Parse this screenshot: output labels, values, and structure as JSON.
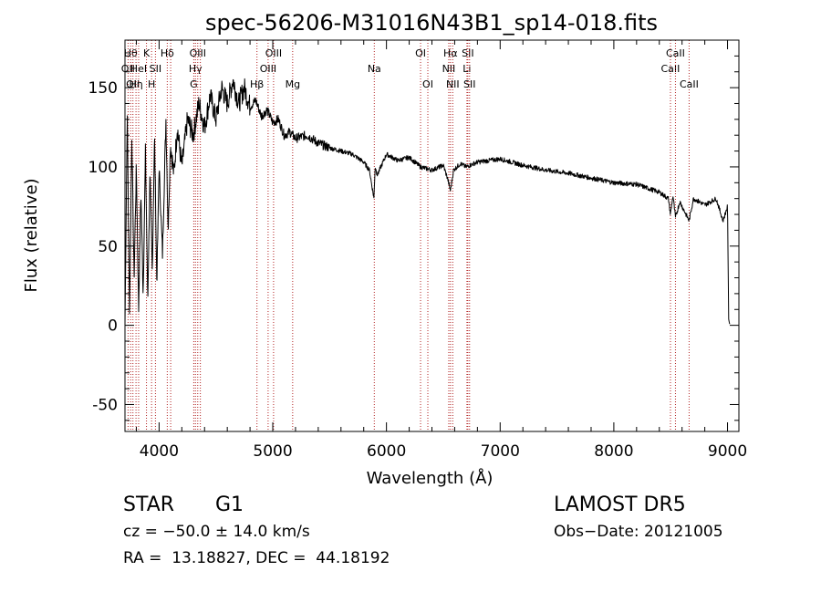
{
  "chart_data": {
    "type": "line",
    "title": "spec-56206-M31016N43B1_sp14-018.fits",
    "xlabel": "Wavelength (Å)",
    "ylabel": "Flux (relative)",
    "xlim": [
      3700,
      9100
    ],
    "ylim": [
      -67,
      180
    ],
    "xticks": [
      4000,
      5000,
      6000,
      7000,
      8000,
      9000
    ],
    "yticks": [
      -50,
      0,
      50,
      100,
      150
    ],
    "grid": false,
    "line_color": "#000000",
    "marker_color": "#b22222",
    "spectrum": {
      "x": [
        3700,
        3720,
        3740,
        3760,
        3780,
        3800,
        3820,
        3840,
        3860,
        3880,
        3900,
        3920,
        3940,
        3960,
        3980,
        4000,
        4030,
        4060,
        4080,
        4100,
        4130,
        4160,
        4200,
        4250,
        4300,
        4350,
        4400,
        4450,
        4500,
        4550,
        4600,
        4650,
        4700,
        4750,
        4800,
        4850,
        4900,
        4950,
        5000,
        5050,
        5100,
        5150,
        5200,
        5300,
        5400,
        5500,
        5600,
        5700,
        5800,
        5850,
        5890,
        5900,
        5920,
        6000,
        6100,
        6200,
        6300,
        6400,
        6500,
        6540,
        6563,
        6590,
        6650,
        6700,
        6800,
        6900,
        7000,
        7100,
        7200,
        7400,
        7600,
        7800,
        8000,
        8200,
        8400,
        8480,
        8498,
        8520,
        8542,
        8580,
        8662,
        8700,
        8800,
        8900,
        8960,
        9000,
        9010,
        9020
      ],
      "y": [
        0,
        135,
        5,
        120,
        30,
        100,
        10,
        85,
        20,
        110,
        15,
        95,
        35,
        120,
        25,
        100,
        45,
        130,
        60,
        115,
        95,
        125,
        100,
        130,
        120,
        140,
        125,
        145,
        130,
        150,
        140,
        155,
        140,
        150,
        138,
        142,
        132,
        136,
        128,
        130,
        120,
        122,
        118,
        120,
        115,
        112,
        110,
        108,
        103,
        98,
        80,
        100,
        95,
        108,
        104,
        106,
        100,
        98,
        101,
        92,
        85,
        98,
        102,
        100,
        103,
        104,
        105,
        103,
        101,
        98,
        96,
        93,
        90,
        89,
        84,
        80,
        70,
        82,
        68,
        78,
        66,
        80,
        76,
        80,
        66,
        75,
        5,
        0
      ]
    },
    "lines": [
      {
        "wl": 3727,
        "label": "OII",
        "row": 2
      },
      {
        "wl": 3750,
        "label": "Hθ",
        "row": 1
      },
      {
        "wl": 3770,
        "label": "OII",
        "row": 3
      },
      {
        "wl": 3797,
        "label": "Hη",
        "row": 3
      },
      {
        "wl": 3820,
        "label": "HeI",
        "row": 2
      },
      {
        "wl": 3889,
        "label": "K",
        "row": 1
      },
      {
        "wl": 3934,
        "label": "H",
        "row": 3
      },
      {
        "wl": 3968,
        "label": "SII",
        "row": 2
      },
      {
        "wl": 4072,
        "label": "Hδ",
        "row": 1
      },
      {
        "wl": 4102,
        "label": "",
        "row": 0
      },
      {
        "wl": 4305,
        "label": "G",
        "row": 3
      },
      {
        "wl": 4320,
        "label": "Hγ",
        "row": 2
      },
      {
        "wl": 4340,
        "label": "OIII",
        "row": 1
      },
      {
        "wl": 4363,
        "label": "",
        "row": 0
      },
      {
        "wl": 4861,
        "label": "Hβ",
        "row": 3
      },
      {
        "wl": 4959,
        "label": "OIII",
        "row": 2
      },
      {
        "wl": 5007,
        "label": "OIII",
        "row": 1
      },
      {
        "wl": 5175,
        "label": "Mg",
        "row": 3
      },
      {
        "wl": 5893,
        "label": "Na",
        "row": 2
      },
      {
        "wl": 6300,
        "label": "OI",
        "row": 1
      },
      {
        "wl": 6364,
        "label": "OI",
        "row": 3
      },
      {
        "wl": 6548,
        "label": "NII",
        "row": 2
      },
      {
        "wl": 6563,
        "label": "Hα",
        "row": 1
      },
      {
        "wl": 6583,
        "label": "NII",
        "row": 3
      },
      {
        "wl": 6708,
        "label": "Li",
        "row": 2
      },
      {
        "wl": 6716,
        "label": "SII",
        "row": 1
      },
      {
        "wl": 6731,
        "label": "SII",
        "row": 3
      },
      {
        "wl": 8498,
        "label": "CaII",
        "row": 2
      },
      {
        "wl": 8542,
        "label": "CaII",
        "row": 1
      },
      {
        "wl": 8662,
        "label": "CaII",
        "row": 3
      }
    ]
  },
  "info": {
    "object_class": "STAR",
    "subclass": "G1",
    "survey": "LAMOST DR5",
    "cz": "cz = −50.0 ± 14.0 km/s",
    "obs_date": "Obs−Date: 20121005",
    "coords": "RA =  13.18827, DEC =  44.18192"
  }
}
